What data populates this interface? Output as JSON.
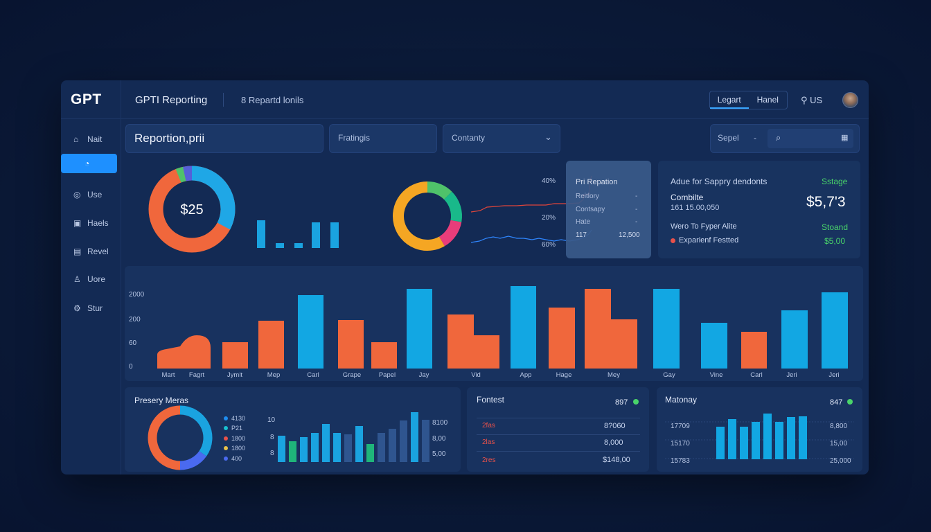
{
  "header": {
    "logo": "GPT",
    "app_title": "GPTI Reporting",
    "breadcrumb": "8 Repartd lonils",
    "toggle": [
      "Legart",
      "Hanel"
    ],
    "language": "US"
  },
  "sidebar": {
    "items": [
      {
        "label": "Nait",
        "icon": "home-icon"
      },
      {
        "label": "",
        "icon": "chart-icon",
        "active": true
      },
      {
        "label": "Use",
        "icon": "user-icon"
      },
      {
        "label": "Haels",
        "icon": "image-icon"
      },
      {
        "label": "Revel",
        "icon": "document-icon"
      },
      {
        "label": "Uore",
        "icon": "person-icon"
      },
      {
        "label": "Stur",
        "icon": "settings-icon"
      }
    ]
  },
  "toolbar": {
    "title_value": "Reportion,prii",
    "filter1": "Fratingis",
    "filter2": "Contanty",
    "search_label": "Sepel",
    "search_dash": "-"
  },
  "kpi_donut": {
    "center_label": "$25",
    "colors": [
      "#f0673c",
      "#1fa7e6",
      "#5560d8",
      "#4fc26a"
    ]
  },
  "mini_bars": {
    "values": [
      40,
      7,
      7,
      37,
      37
    ],
    "color": "#1aa3e0"
  },
  "ring_donut": {
    "colors": [
      "#f5a623",
      "#4fc26a",
      "#19b98a",
      "#e83d7a"
    ]
  },
  "sparkline": {
    "ticks": [
      "40%",
      "20%",
      "60%"
    ],
    "colors": [
      "#e0453a",
      "#2f86ff"
    ]
  },
  "report_card": {
    "title": "Pri Repation",
    "rows": [
      {
        "label": "Reitlory",
        "value": "-"
      },
      {
        "label": "Contsapy",
        "value": "-"
      },
      {
        "label": "Hate",
        "value": "-"
      }
    ],
    "footer_left": "117",
    "footer_right": "12,500"
  },
  "summary_card": {
    "row1_label": "Adue for Sappry dendonts",
    "row1_tag": "Sstage",
    "row2_label": "Combilte",
    "row2_sub": "161 15.00,050",
    "row2_value": "$5,7'3",
    "row3_label": "Wero To Fyper Alite",
    "row3_tag": "Stoand",
    "row4_label": "Exparienf Festted",
    "row4_value": "$5,00"
  },
  "main_chart": {
    "y_ticks": [
      "2000",
      "200",
      "60",
      "0"
    ],
    "x_labels": [
      "Mart",
      "Fagrt",
      "Jymit",
      "Mep",
      "Carl",
      "Grape",
      "Papel",
      "Jay",
      "Vid",
      "App",
      "Hage",
      "Mey",
      "Gay",
      "Vine",
      "Carl",
      "Jeri",
      "Jeri"
    ],
    "colors": {
      "orange": "#f0673c",
      "blue": "#12a7e3"
    }
  },
  "chart_data": {
    "type": "bar",
    "y_ticks": [
      "2000",
      "200",
      "60",
      "0"
    ],
    "categories": [
      "Mart",
      "Fagrt",
      "Jymit",
      "Mep",
      "Carl",
      "Grape",
      "Papel",
      "Jay",
      "Vid",
      "App",
      "Hage",
      "Mey",
      "Gay",
      "Vine",
      "Carl",
      "Jeri",
      "Jeri"
    ]
  },
  "bottom_left": {
    "title": "Presery Meras",
    "legend": [
      {
        "label": "4130",
        "color": "#1e8df0"
      },
      {
        "label": "P21",
        "color": "#19c0d0"
      },
      {
        "label": "1800",
        "color": "#e8514a"
      },
      {
        "label": "1800",
        "color": "#e8c14a"
      },
      {
        "label": "400",
        "color": "#4a6af0"
      }
    ],
    "y_ticks_left": [
      "10",
      "8",
      "8"
    ],
    "y_ticks_right": [
      "8100",
      "8,00",
      "5,00"
    ],
    "donut_colors": [
      "#f0673c",
      "#1aa3e0",
      "#4a6af0"
    ]
  },
  "bottom_mid": {
    "title": "Fontest",
    "value": "897",
    "rows": [
      {
        "label": "2fas",
        "value": "8?060"
      },
      {
        "label": "2las",
        "value": "8,000"
      },
      {
        "label": "2res",
        "value": "$148,00"
      }
    ]
  },
  "bottom_right": {
    "title": "Matonay",
    "value": "847",
    "left_ticks": [
      "17709",
      "15170",
      "15783"
    ],
    "right_ticks": [
      "8,800",
      "15,00",
      "25,000"
    ]
  }
}
